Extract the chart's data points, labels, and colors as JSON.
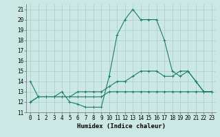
{
  "xlabel": "Humidex (Indice chaleur)",
  "x": [
    0,
    1,
    2,
    3,
    4,
    5,
    6,
    7,
    8,
    9,
    10,
    11,
    12,
    13,
    14,
    15,
    16,
    17,
    18,
    19,
    20,
    21,
    22,
    23
  ],
  "line1": [
    14.0,
    12.5,
    12.5,
    12.5,
    13.0,
    12.0,
    11.8,
    11.5,
    11.5,
    11.5,
    14.5,
    18.5,
    20.0,
    21.0,
    20.0,
    20.0,
    20.0,
    18.0,
    15.0,
    14.5,
    15.0,
    14.0,
    13.0,
    13.0
  ],
  "line2": [
    12.0,
    12.5,
    12.5,
    12.5,
    12.5,
    12.5,
    13.0,
    13.0,
    13.0,
    13.0,
    13.5,
    14.0,
    14.0,
    14.5,
    15.0,
    15.0,
    15.0,
    14.5,
    14.5,
    15.0,
    15.0,
    14.0,
    13.0,
    13.0
  ],
  "line3": [
    12.0,
    12.5,
    12.5,
    12.5,
    12.5,
    12.5,
    12.5,
    12.5,
    12.5,
    12.5,
    13.0,
    13.0,
    13.0,
    13.0,
    13.0,
    13.0,
    13.0,
    13.0,
    13.0,
    13.0,
    13.0,
    13.0,
    13.0,
    13.0
  ],
  "line_color": "#1a7a6e",
  "bg_color": "#cce8e5",
  "grid_color": "#aaccca",
  "ylim": [
    11,
    21.5
  ],
  "yticks": [
    11,
    12,
    13,
    14,
    15,
    16,
    17,
    18,
    19,
    20,
    21
  ],
  "xticks": [
    0,
    1,
    2,
    3,
    4,
    5,
    6,
    7,
    8,
    9,
    10,
    11,
    12,
    13,
    14,
    15,
    16,
    17,
    18,
    19,
    20,
    21,
    22,
    23
  ],
  "xlabel_fontsize": 6.5,
  "tick_fontsize": 5.5,
  "markersize": 3.0,
  "linewidth": 0.8
}
